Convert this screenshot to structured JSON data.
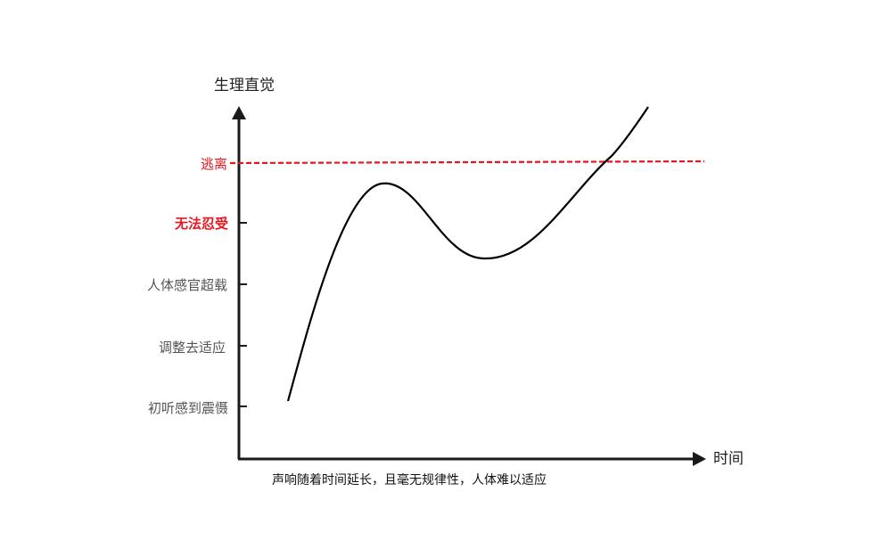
{
  "diagram": {
    "y_axis_title": "生理直觉",
    "x_axis_title": "时间",
    "levels": [
      {
        "label": "逃离",
        "color": "#e8141e",
        "threshold_line": true
      },
      {
        "label": "无法忍受",
        "color": "#e8141e",
        "bold": true
      },
      {
        "label": "人体感官超载",
        "color": "#555555"
      },
      {
        "label": "调整去适应",
        "color": "#555555"
      },
      {
        "label": "初听感到震慑",
        "color": "#555555"
      }
    ],
    "caption": "声响随着时间延长，且毫无规律性，人体难以适应",
    "colors": {
      "axis": "#1a1a1a",
      "curve": "#000000",
      "threshold": "#e8141e"
    }
  }
}
